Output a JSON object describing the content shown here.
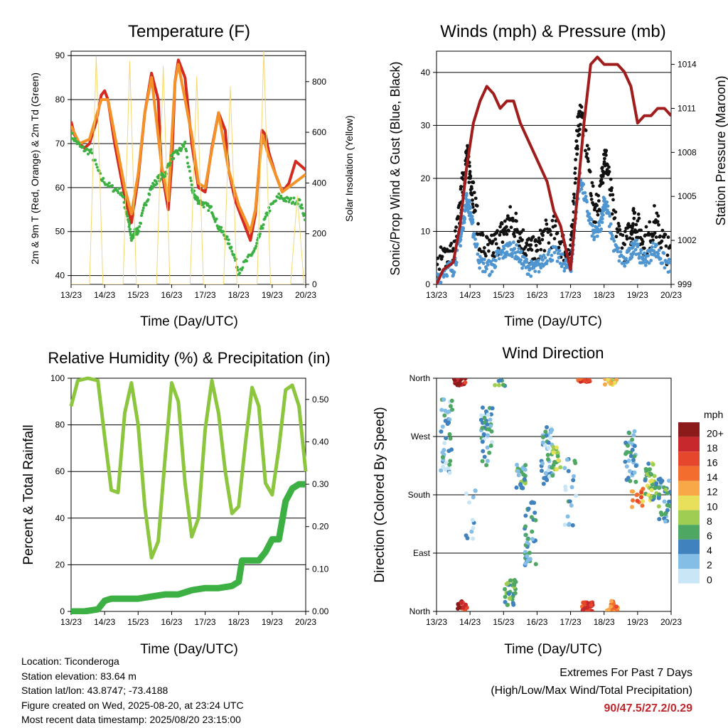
{
  "chart_data": [
    {
      "type": "line",
      "title": "Temperature (F)",
      "xlabel": "Time (Day/UTC)",
      "ylabel": "2m & 9m T (Red, Orange) & 2m Td (Green)",
      "ylabel_right": "Solar Insolation (Yellow)",
      "ylim": [
        38,
        91
      ],
      "yticks": [
        "40",
        "50",
        "60",
        "70",
        "80",
        "90"
      ],
      "ylim_right": [
        0,
        920
      ],
      "yticks_right": [
        "0",
        "200",
        "400",
        "600",
        "800"
      ],
      "x_ticks": [
        "13/23",
        "14/23",
        "15/23",
        "16/23",
        "17/23",
        "18/23",
        "19/23",
        "20/23"
      ],
      "grid": true,
      "series": [
        {
          "key": "t2",
          "color": "#d42a1f",
          "x": [
            0,
            0.1,
            0.25,
            0.4,
            0.55,
            0.75,
            0.9,
            1.0,
            1.1,
            1.3,
            1.6,
            1.8,
            2.0,
            2.2,
            2.4,
            2.6,
            2.7,
            2.9,
            3.0,
            3.1,
            3.2,
            3.4,
            3.6,
            3.8,
            4.0,
            4.2,
            4.4,
            4.6,
            4.7,
            4.9,
            5.0,
            5.2,
            5.35,
            5.5,
            5.7,
            5.8,
            5.9,
            6.1,
            6.3,
            6.5,
            6.7,
            7.0
          ],
          "y": [
            75,
            72,
            70,
            69,
            70,
            75,
            81,
            82,
            80,
            70,
            58,
            52,
            62,
            77,
            86,
            80,
            64,
            55,
            65,
            84,
            89,
            85,
            70,
            60,
            59,
            69,
            77,
            73,
            64,
            57,
            55,
            51,
            48,
            54,
            73,
            72,
            68,
            63,
            59,
            61,
            66,
            64
          ]
        },
        {
          "key": "t9",
          "color": "#f4922a",
          "x": [
            0,
            0.25,
            0.55,
            0.9,
            1.1,
            1.3,
            1.6,
            1.8,
            2.0,
            2.2,
            2.4,
            2.7,
            2.9,
            3.1,
            3.2,
            3.6,
            3.8,
            4.0,
            4.4,
            4.7,
            5.0,
            5.35,
            5.5,
            5.7,
            5.9,
            6.3,
            7.0
          ],
          "y": [
            74,
            70,
            71,
            80,
            80,
            72,
            60,
            54,
            63,
            77,
            85,
            65,
            57,
            84,
            88,
            72,
            61,
            60,
            77,
            64,
            56,
            50,
            55,
            72,
            67,
            59,
            63
          ]
        },
        {
          "key": "td",
          "color": "#3cb043",
          "x": [
            0,
            0.3,
            0.6,
            0.9,
            1.2,
            1.5,
            1.7,
            1.8,
            1.9,
            2.0,
            2.2,
            2.4,
            2.6,
            2.8,
            3.0,
            3.2,
            3.4,
            3.6,
            3.7,
            3.8,
            4.0,
            4.2,
            4.4,
            4.6,
            4.8,
            5.0,
            5.3,
            5.5,
            5.7,
            5.9,
            6.2,
            6.5,
            6.8,
            7.0
          ],
          "y": [
            72,
            69,
            68,
            62,
            60,
            59,
            53,
            48,
            50,
            50,
            56,
            60,
            62,
            63,
            67,
            68,
            70,
            60,
            58,
            57,
            56,
            55,
            51,
            49,
            46,
            41,
            44,
            46,
            51,
            55,
            58,
            57,
            57,
            53
          ]
        },
        {
          "key": "solar",
          "color": "#f5d76e",
          "x": [
            0,
            0.55,
            0.75,
            0.95,
            1.45,
            1.55,
            1.75,
            1.95,
            2.45,
            2.55,
            2.75,
            2.95,
            3.45,
            3.55,
            3.75,
            3.95,
            4.45,
            4.55,
            4.75,
            4.95,
            5.45,
            5.55,
            5.75,
            5.95,
            6.45,
            6.55,
            6.75,
            6.95,
            7.0
          ],
          "y_right": [
            0,
            0,
            900,
            0,
            0,
            0,
            880,
            0,
            0,
            0,
            860,
            0,
            0,
            0,
            820,
            0,
            0,
            0,
            780,
            0,
            0,
            0,
            920,
            0,
            0,
            0,
            350,
            0,
            0
          ]
        }
      ]
    },
    {
      "type": "scatter",
      "title": "Winds (mph) & Pressure (mb)",
      "xlabel": "Time (Day/UTC)",
      "ylabel": "Sonic/Prop Wind & Gust (Blue, Black)",
      "ylabel_right": "Station Pressure (Maroon)",
      "ylim": [
        0,
        44
      ],
      "yticks": [
        "0",
        "10",
        "20",
        "30",
        "40"
      ],
      "ylim_right": [
        999,
        1014.9
      ],
      "yticks_right": [
        "999",
        "1002",
        "1005",
        "1008",
        "1011",
        "1014"
      ],
      "x_ticks": [
        "13/23",
        "14/23",
        "15/23",
        "16/23",
        "17/23",
        "18/23",
        "19/23",
        "20/23"
      ],
      "grid": true,
      "series": [
        {
          "key": "gust",
          "color": "#111111",
          "x": [
            0,
            0.3,
            0.5,
            0.7,
            0.8,
            0.9,
            1.0,
            1.1,
            1.3,
            1.6,
            1.8,
            2.0,
            2.2,
            2.4,
            2.6,
            2.8,
            3.0,
            3.2,
            3.5,
            3.8,
            4.0,
            4.1,
            4.2,
            4.3,
            4.5,
            4.7,
            4.9,
            5.0,
            5.1,
            5.3,
            5.6,
            5.8,
            5.9,
            6.1,
            6.3,
            6.5,
            6.7,
            7.0
          ],
          "y": [
            3,
            6,
            5,
            14,
            20,
            24,
            21,
            17,
            8,
            6,
            8,
            10,
            12,
            11,
            8,
            6,
            6,
            9,
            10,
            7,
            5,
            16,
            28,
            33,
            25,
            14,
            17,
            25,
            22,
            12,
            7,
            10,
            13,
            9,
            8,
            12,
            9,
            5
          ]
        },
        {
          "key": "wind",
          "color": "#4f95d0",
          "x": [
            0,
            0.3,
            0.5,
            0.7,
            0.8,
            0.9,
            1.0,
            1.1,
            1.3,
            1.6,
            1.8,
            2.0,
            2.2,
            2.4,
            2.6,
            2.8,
            3.0,
            3.2,
            3.5,
            3.8,
            4.0,
            4.1,
            4.2,
            4.3,
            4.5,
            4.7,
            4.9,
            5.0,
            5.1,
            5.3,
            5.6,
            5.8,
            5.9,
            6.1,
            6.3,
            6.5,
            6.7,
            7.0
          ],
          "y": [
            1,
            3,
            3,
            8,
            12,
            16,
            14,
            10,
            4,
            3,
            5,
            6,
            7,
            6,
            4,
            3,
            3,
            5,
            6,
            4,
            3,
            9,
            17,
            20,
            14,
            9,
            11,
            16,
            14,
            7,
            4,
            6,
            8,
            5,
            5,
            7,
            5,
            3
          ]
        },
        {
          "key": "pressure",
          "color": "#a11c1c",
          "x": [
            0,
            0.2,
            0.5,
            0.7,
            0.9,
            1.1,
            1.3,
            1.5,
            1.7,
            1.9,
            2.1,
            2.3,
            2.5,
            2.7,
            2.9,
            3.1,
            3.3,
            3.5,
            3.7,
            3.9,
            4.0,
            4.2,
            4.4,
            4.6,
            4.8,
            5.0,
            5.2,
            5.4,
            5.6,
            5.8,
            6.0,
            6.2,
            6.4,
            6.6,
            6.8,
            7.0
          ],
          "y_right": [
            999,
            1000,
            1000.5,
            1003,
            1007,
            1010,
            1011.5,
            1012.5,
            1012,
            1011,
            1011.5,
            1011.5,
            1010,
            1009,
            1008,
            1007,
            1006,
            1004,
            1003,
            1001,
            1000,
            1005,
            1010,
            1014,
            1014.5,
            1014,
            1014,
            1014,
            1013.5,
            1012.5,
            1010,
            1010.5,
            1010.5,
            1011,
            1011,
            1010.5
          ]
        }
      ]
    },
    {
      "type": "line",
      "title": "Relative Humidity (%) & Precipitation (in)",
      "xlabel": "Time (Day/UTC)",
      "ylabel": "Percent & Total Rainfall",
      "ylim": [
        0,
        100
      ],
      "yticks": [
        "0",
        "20",
        "40",
        "60",
        "80",
        "100"
      ],
      "ylim_right": [
        0,
        0.55
      ],
      "yticks_right": [
        "0.00",
        "0.10",
        "0.20",
        "0.30",
        "0.40",
        "0.50"
      ],
      "x_ticks": [
        "13/23",
        "14/23",
        "15/23",
        "16/23",
        "17/23",
        "18/23",
        "19/23",
        "20/23"
      ],
      "grid": true,
      "series": [
        {
          "key": "rh",
          "color": "#8cc63f",
          "x": [
            0,
            0.2,
            0.5,
            0.8,
            1.0,
            1.2,
            1.4,
            1.6,
            1.8,
            2.0,
            2.2,
            2.4,
            2.6,
            2.8,
            3.0,
            3.2,
            3.4,
            3.6,
            3.8,
            4.0,
            4.2,
            4.4,
            4.6,
            4.8,
            5.0,
            5.2,
            5.4,
            5.6,
            5.8,
            6.0,
            6.2,
            6.4,
            6.6,
            6.8,
            7.0
          ],
          "y": [
            88,
            99,
            100,
            99,
            75,
            52,
            51,
            85,
            98,
            80,
            45,
            23,
            30,
            65,
            98,
            90,
            55,
            32,
            40,
            78,
            99,
            85,
            60,
            42,
            45,
            72,
            96,
            88,
            55,
            50,
            70,
            95,
            97,
            88,
            60
          ]
        },
        {
          "key": "precip",
          "color": "#3cb043",
          "x": [
            0,
            0.4,
            0.8,
            1.0,
            1.2,
            1.6,
            2.0,
            2.4,
            2.8,
            3.2,
            3.6,
            4.0,
            4.4,
            4.8,
            5.0,
            5.1,
            5.3,
            5.6,
            5.8,
            6.0,
            6.2,
            6.4,
            6.6,
            6.8,
            7.0
          ],
          "y_right": [
            0,
            0,
            0.005,
            0.025,
            0.03,
            0.03,
            0.03,
            0.035,
            0.04,
            0.04,
            0.05,
            0.055,
            0.055,
            0.06,
            0.07,
            0.12,
            0.12,
            0.12,
            0.14,
            0.17,
            0.17,
            0.26,
            0.29,
            0.3,
            0.3
          ]
        }
      ]
    },
    {
      "type": "scatter",
      "title": "Wind Direction",
      "xlabel": "Time (Day/UTC)",
      "ylabel": "Direction (Colored By Speed)",
      "ylim": [
        0,
        360
      ],
      "yticks": [
        "North",
        "East",
        "South",
        "West",
        "North"
      ],
      "x_ticks": [
        "13/23",
        "14/23",
        "15/23",
        "16/23",
        "17/23",
        "18/23",
        "19/23",
        "20/23"
      ],
      "grid": true,
      "legend_title": "mph",
      "legend_labels": [
        "20+",
        "18",
        "16",
        "14",
        "12",
        "10",
        "8",
        "6",
        "4",
        "2",
        "0"
      ],
      "legend_colors": [
        "#8b1a1a",
        "#c7282d",
        "#e4472b",
        "#f26d2e",
        "#f8a848",
        "#e8e05a",
        "#9fcc53",
        "#4ea763",
        "#3f82bd",
        "#84bde6",
        "#c8e6f6"
      ],
      "clusters": [
        {
          "x": 0.3,
          "dir": 270,
          "spread": 60,
          "n": 40,
          "speed": 3
        },
        {
          "x": 0.7,
          "dir": 355,
          "spread": 6,
          "n": 25,
          "speed": 19
        },
        {
          "x": 0.75,
          "dir": 8,
          "spread": 8,
          "n": 18,
          "speed": 17
        },
        {
          "x": 1.5,
          "dir": 270,
          "spread": 45,
          "n": 40,
          "speed": 3
        },
        {
          "x": 1.9,
          "dir": 355,
          "spread": 8,
          "n": 8,
          "speed": 6
        },
        {
          "x": 2.2,
          "dir": 30,
          "spread": 20,
          "n": 30,
          "speed": 6
        },
        {
          "x": 2.5,
          "dir": 210,
          "spread": 20,
          "n": 25,
          "speed": 5
        },
        {
          "x": 2.8,
          "dir": 120,
          "spread": 50,
          "n": 40,
          "speed": 4
        },
        {
          "x": 3.3,
          "dir": 240,
          "spread": 45,
          "n": 40,
          "speed": 3
        },
        {
          "x": 3.6,
          "dir": 230,
          "spread": 25,
          "n": 20,
          "speed": 8
        },
        {
          "x": 4.4,
          "dir": 357,
          "spread": 3,
          "n": 30,
          "speed": 16
        },
        {
          "x": 4.5,
          "dir": 7,
          "spread": 7,
          "n": 30,
          "speed": 16
        },
        {
          "x": 5.2,
          "dir": 355,
          "spread": 5,
          "n": 20,
          "speed": 11
        },
        {
          "x": 5.25,
          "dir": 8,
          "spread": 8,
          "n": 20,
          "speed": 14
        },
        {
          "x": 5.8,
          "dir": 240,
          "spread": 40,
          "n": 35,
          "speed": 4
        },
        {
          "x": 6.0,
          "dir": 175,
          "spread": 15,
          "n": 15,
          "speed": 13
        },
        {
          "x": 6.4,
          "dir": 200,
          "spread": 30,
          "n": 35,
          "speed": 7
        },
        {
          "x": 6.8,
          "dir": 170,
          "spread": 35,
          "n": 35,
          "speed": 5
        },
        {
          "x": 1.0,
          "dir": 150,
          "spread": 40,
          "n": 12,
          "speed": 2
        },
        {
          "x": 4.0,
          "dir": 180,
          "spread": 60,
          "n": 20,
          "speed": 3
        }
      ]
    }
  ],
  "footer": {
    "location": "Location: Ticonderoga",
    "elevation": "Station elevation: 83.64 m",
    "latlon": "Station lat/lon: 43.8747; -73.4188",
    "created": "Figure created on Wed, 2025-08-20, at 23:24 UTC",
    "recent": "Most recent data timestamp: 2025/08/20 23:15:00"
  },
  "extremes": {
    "title": "Extremes For Past 7 Days",
    "subtitle": "(High/Low/Max Wind/Total Precipitation)",
    "values": "90/47.5/27.2/0.29"
  }
}
